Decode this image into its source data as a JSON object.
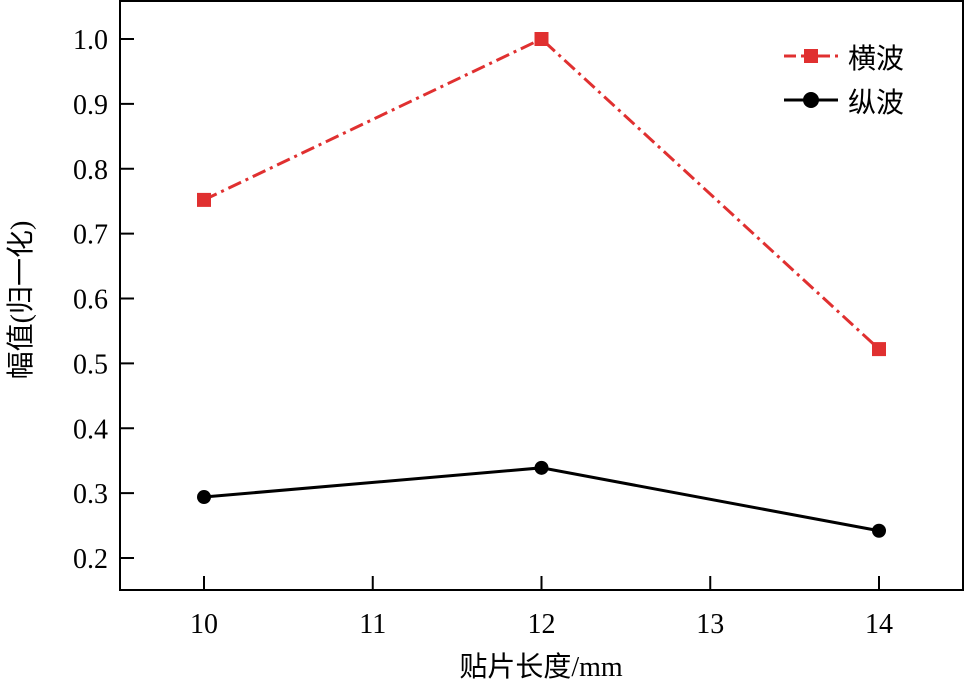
{
  "chart_data": {
    "type": "line",
    "xlabel": "贴片长度/mm",
    "ylabel": "幅值(归一化)",
    "x": [
      10,
      12,
      14
    ],
    "xlim": [
      9.5,
      14.5
    ],
    "ylim": [
      0.15,
      1.06
    ],
    "xticks": [
      "10",
      "11",
      "12",
      "13",
      "14"
    ],
    "yticks": [
      "0.2",
      "0.3",
      "0.4",
      "0.5",
      "0.6",
      "0.7",
      "0.8",
      "0.9",
      "1.0"
    ],
    "grid": false,
    "legend_position": "top-right",
    "series": [
      {
        "name": "横波",
        "values": [
          0.752,
          1.0,
          0.522
        ],
        "color": "#e03030",
        "marker": "square",
        "line": "dash-dot"
      },
      {
        "name": "纵波",
        "values": [
          0.294,
          0.339,
          0.242
        ],
        "color": "#000000",
        "marker": "circle",
        "line": "solid"
      }
    ]
  }
}
